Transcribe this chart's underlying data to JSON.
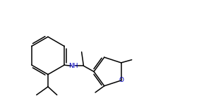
{
  "bg_color": "#ffffff",
  "line_color": "#000000",
  "nh_color": "#0000bb",
  "o_color": "#0000bb",
  "figsize": [
    2.82,
    1.53
  ],
  "dpi": 100
}
